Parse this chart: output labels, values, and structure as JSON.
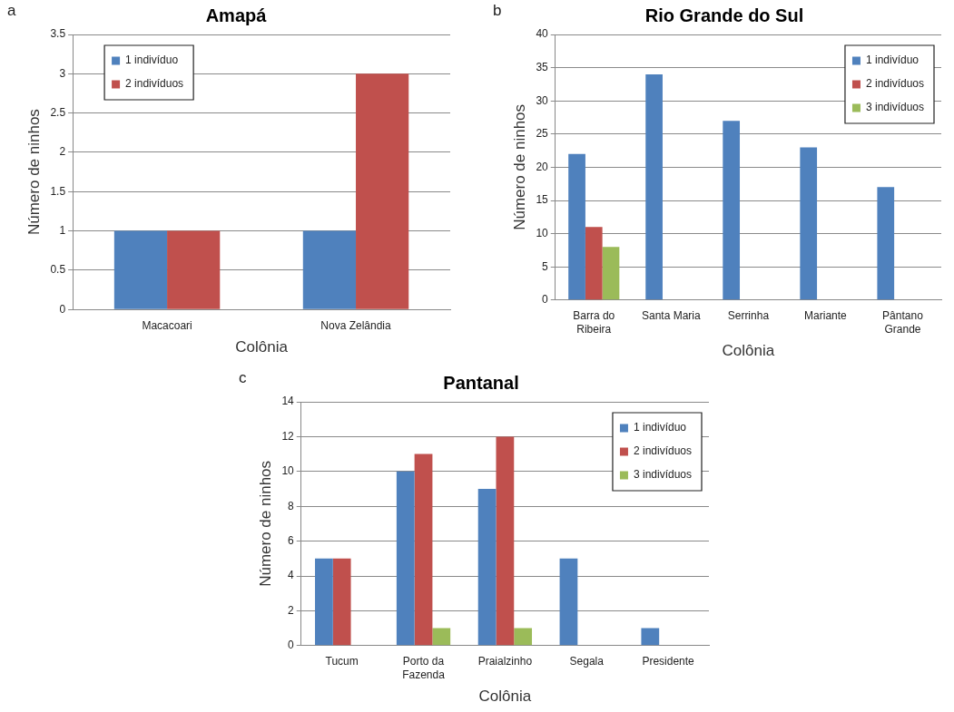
{
  "chart_data": [
    {
      "type": "bar",
      "title": "Amapá",
      "xlabel": "Colônia",
      "ylabel": "Número de ninhos",
      "annotations": [
        "a"
      ],
      "categories": [
        "Macacoari",
        "Nova Zelândia"
      ],
      "series": [
        {
          "name": "1 indivíduo",
          "color": "#4f81bd",
          "values": [
            1,
            1
          ]
        },
        {
          "name": "2 indivíduos",
          "color": "#c0504d",
          "values": [
            1,
            3
          ]
        }
      ],
      "ylim": [
        0,
        3.5
      ],
      "yticks": [
        0,
        0.5,
        1,
        1.5,
        2,
        2.5,
        3,
        3.5
      ],
      "grid": "y",
      "legend": "top left"
    },
    {
      "type": "bar",
      "title": "Rio Grande do Sul",
      "xlabel": "Colônia",
      "ylabel": "Número de ninhos",
      "annotations": [
        "b"
      ],
      "categories": [
        "Barra do Ribeira",
        "Santa Maria",
        "Serrinha",
        "Mariante",
        "Pântano Grande"
      ],
      "series": [
        {
          "name": "1 indivíduo",
          "color": "#4f81bd",
          "values": [
            22,
            34,
            27,
            23,
            17
          ]
        },
        {
          "name": "2 indivíduos",
          "color": "#c0504d",
          "values": [
            11,
            null,
            null,
            null,
            null
          ]
        },
        {
          "name": "3 indivíduos",
          "color": "#9bbb59",
          "values": [
            8,
            null,
            null,
            null,
            null
          ]
        }
      ],
      "ylim": [
        0,
        40
      ],
      "yticks": [
        0,
        5,
        10,
        15,
        20,
        25,
        30,
        35,
        40
      ],
      "grid": "y",
      "legend": "top right"
    },
    {
      "type": "bar",
      "title": "Pantanal",
      "xlabel": "Colônia",
      "ylabel": "Número de ninhos",
      "annotations": [
        "c"
      ],
      "categories": [
        "Tucum",
        "Porto da Fazenda",
        "Praialzinho",
        "Segala",
        "Presidente"
      ],
      "series": [
        {
          "name": "1 indivíduo",
          "color": "#4f81bd",
          "values": [
            5,
            10,
            9,
            5,
            1
          ]
        },
        {
          "name": "2 indivíduos",
          "color": "#c0504d",
          "values": [
            5,
            11,
            12,
            null,
            null
          ]
        },
        {
          "name": "3 indivíduos",
          "color": "#9bbb59",
          "values": [
            null,
            1,
            1,
            null,
            null
          ]
        }
      ],
      "ylim": [
        0,
        14
      ],
      "yticks": [
        0,
        2,
        4,
        6,
        8,
        10,
        12,
        14
      ],
      "grid": "y",
      "legend": "top right"
    }
  ]
}
